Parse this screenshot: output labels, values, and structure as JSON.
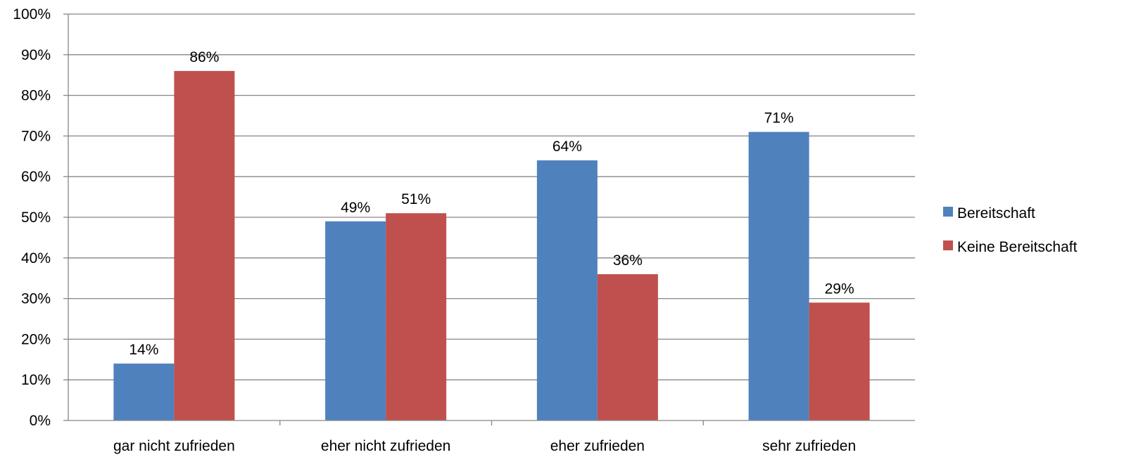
{
  "chart_data": {
    "type": "bar",
    "categories": [
      "gar nicht zufrieden",
      "eher nicht zufrieden",
      "eher zufrieden",
      "sehr zufrieden"
    ],
    "series": [
      {
        "name": "Bereitschaft",
        "values": [
          14,
          49,
          64,
          71
        ],
        "labels": [
          "14%",
          "49%",
          "64%",
          "71%"
        ],
        "color": "#4F81BD"
      },
      {
        "name": "Keine Bereitschaft",
        "values": [
          86,
          51,
          36,
          29
        ],
        "labels": [
          "86%",
          "51%",
          "36%",
          "29%"
        ],
        "color": "#C0504D"
      }
    ],
    "ylim": [
      0,
      100
    ],
    "yticks": [
      "0%",
      "10%",
      "20%",
      "30%",
      "40%",
      "50%",
      "60%",
      "70%",
      "80%",
      "90%",
      "100%"
    ],
    "grid": true,
    "legend_position": "right",
    "gridline_color": "#868686"
  }
}
